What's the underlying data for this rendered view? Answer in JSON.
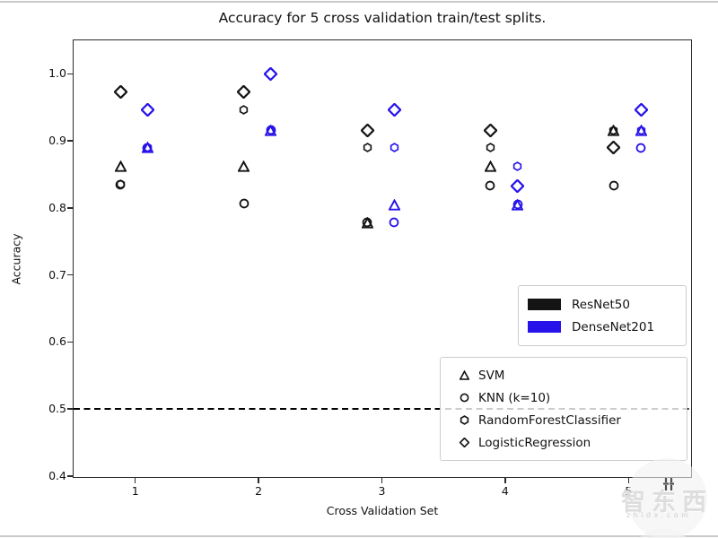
{
  "chart_data": {
    "type": "scatter",
    "title": "Accuracy for 5 cross validation train/test splits.",
    "xlabel": "Cross Validation Set",
    "ylabel": "Accuracy",
    "xlim": [
      0.5,
      5.5
    ],
    "ylim": [
      0.4,
      1.05
    ],
    "xticks": [
      "1",
      "2",
      "3",
      "4",
      "5"
    ],
    "yticks": [
      "0.4",
      "0.5",
      "0.6",
      "0.7",
      "0.8",
      "0.9",
      "1.0"
    ],
    "grid": false,
    "baseline": {
      "y": 0.5,
      "style": "dashed",
      "color": "#000000"
    },
    "x": [
      1,
      2,
      3,
      4,
      5
    ],
    "models": [
      {
        "name": "ResNet50",
        "color": "#141414",
        "x_offset": -0.12,
        "series": [
          {
            "classifier": "SVM",
            "marker": "triangle",
            "values": [
              0.862,
              0.862,
              0.778,
              0.862,
              0.916
            ]
          },
          {
            "classifier": "KNN (k=10)",
            "marker": "circle",
            "values": [
              0.835,
              0.807,
              0.778,
              0.833,
              0.833
            ]
          },
          {
            "classifier": "RandomForestClassifier",
            "marker": "hexagon",
            "values": [
              0.835,
              0.946,
              0.89,
              0.89,
              0.916
            ]
          },
          {
            "classifier": "LogisticRegression",
            "marker": "diamond",
            "values": [
              0.973,
              0.973,
              0.916,
              0.916,
              0.89
            ]
          }
        ]
      },
      {
        "name": "DenseNet201",
        "color": "#2713ea",
        "x_offset": 0.1,
        "series": [
          {
            "classifier": "SVM",
            "marker": "triangle",
            "values": [
              0.89,
              0.916,
              0.805,
              0.805,
              0.916
            ]
          },
          {
            "classifier": "KNN (k=10)",
            "marker": "circle",
            "values": [
              0.89,
              0.916,
              0.778,
              0.805,
              0.89
            ]
          },
          {
            "classifier": "RandomForestClassifier",
            "marker": "hexagon",
            "values": [
              0.89,
              0.916,
              0.89,
              0.862,
              0.916
            ]
          },
          {
            "classifier": "LogisticRegression",
            "marker": "diamond",
            "values": [
              0.946,
              1.0,
              0.946,
              0.833,
              0.946
            ]
          }
        ]
      }
    ],
    "legend_models": [
      {
        "label": "ResNet50",
        "color": "#141414"
      },
      {
        "label": "DenseNet201",
        "color": "#2713ea"
      }
    ],
    "legend_classifiers": [
      {
        "label": "SVM",
        "marker": "triangle"
      },
      {
        "label": "KNN (k=10)",
        "marker": "circle"
      },
      {
        "label": "RandomForestClassifier",
        "marker": "hexagon"
      },
      {
        "label": "LogisticRegression",
        "marker": "diamond"
      }
    ],
    "legend_positions": {
      "models": "center right",
      "classifiers": "lower right"
    }
  },
  "watermark": {
    "text": "智东西",
    "subtext": "zhidx.com"
  },
  "colors": {
    "axis": "#2b2b2b",
    "legend_border": "#cccccc",
    "background": "#ffffff"
  }
}
